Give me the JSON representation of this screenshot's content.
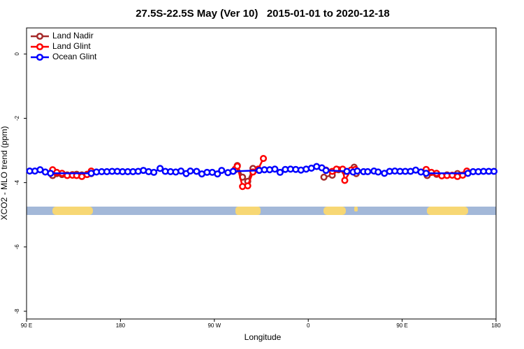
{
  "chart_data": {
    "type": "line",
    "title": "27.5S-22.5S May (Ver 10)   2015-01-01 to 2020-12-18",
    "xlabel": "Longitude",
    "ylabel": "XCO2 - MLO trend (ppm)",
    "xlim": [
      90,
      540
    ],
    "ylim": [
      -8.24,
      0.81
    ],
    "xticks": [
      {
        "value": 90,
        "label": "90 E"
      },
      180,
      {
        "value": 270,
        "label": "90 W"
      },
      {
        "value": 360,
        "label": "0"
      },
      {
        "value": 450,
        "label": "90 E"
      },
      {
        "value": 540,
        "label": "180"
      }
    ],
    "yticks": [
      0,
      -2,
      -4,
      -6,
      -8
    ],
    "legend": "top-left",
    "grid": false,
    "series": [
      {
        "name": "Land Nadir",
        "color": "#a52a2a",
        "x": [
          115,
          119,
          124,
          129,
          134,
          138,
          143,
          148,
          152,
          200,
          290,
          292,
          297,
          302,
          307,
          312,
          345,
          375,
          383,
          389,
          395,
          404,
          406,
          450,
          474,
          483,
          493,
          503,
          512
        ],
        "values": [
          -3.78,
          -3.72,
          -3.75,
          -3.76,
          -3.75,
          -3.74,
          -3.76,
          -3.74,
          -3.72,
          null,
          -3.6,
          -3.47,
          -3.83,
          -3.96,
          -3.56,
          -3.6,
          null,
          -3.83,
          -3.77,
          -3.6,
          -3.65,
          -3.52,
          -3.72,
          null,
          -3.78,
          -3.74,
          -3.76,
          -3.72,
          -3.65
        ]
      },
      {
        "name": "Land Glint",
        "color": "#ff0000",
        "x": [
          115,
          119,
          124,
          129,
          134,
          138,
          143,
          148,
          152,
          200,
          290,
          292,
          297,
          302,
          307,
          312,
          317,
          345,
          377,
          383,
          387,
          393,
          395,
          401,
          405,
          450,
          473,
          478,
          483,
          488,
          493,
          498,
          503,
          508,
          512
        ],
        "values": [
          -3.6,
          -3.68,
          -3.71,
          -3.78,
          -3.77,
          -3.78,
          -3.81,
          -3.75,
          -3.64,
          null,
          -3.58,
          -3.49,
          -4.12,
          -4.1,
          -3.67,
          -3.58,
          -3.25,
          null,
          -3.61,
          -3.65,
          -3.58,
          -3.58,
          -3.93,
          -3.61,
          -3.59,
          null,
          -3.59,
          -3.68,
          -3.71,
          -3.79,
          -3.78,
          -3.77,
          -3.81,
          -3.77,
          -3.64
        ]
      },
      {
        "name": "Ocean Glint",
        "color": "#0000ff",
        "x": [
          93,
          98,
          103,
          108,
          113,
          152,
          157,
          162,
          167,
          172,
          177,
          182,
          187,
          192,
          197,
          202,
          207,
          212,
          218,
          223,
          228,
          233,
          238,
          243,
          247,
          253,
          258,
          263,
          268,
          273,
          277,
          283,
          288,
          313,
          318,
          323,
          328,
          333,
          338,
          343,
          348,
          353,
          358,
          363,
          368,
          373,
          377,
          397,
          403,
          407,
          413,
          417,
          423,
          427,
          433,
          438,
          443,
          448,
          453,
          458,
          463,
          468,
          473,
          513,
          518,
          523,
          528,
          533,
          538
        ],
        "values": [
          -3.64,
          -3.64,
          -3.6,
          -3.67,
          -3.71,
          -3.71,
          -3.67,
          -3.66,
          -3.66,
          -3.65,
          -3.65,
          -3.66,
          -3.66,
          -3.66,
          -3.65,
          -3.62,
          -3.66,
          -3.68,
          -3.56,
          -3.65,
          -3.66,
          -3.67,
          -3.64,
          -3.72,
          -3.64,
          -3.65,
          -3.73,
          -3.68,
          -3.68,
          -3.73,
          -3.62,
          -3.69,
          -3.65,
          -3.62,
          -3.6,
          -3.6,
          -3.58,
          -3.68,
          -3.59,
          -3.58,
          -3.59,
          -3.61,
          -3.58,
          -3.55,
          -3.5,
          -3.54,
          -3.62,
          -3.65,
          -3.67,
          -3.64,
          -3.66,
          -3.66,
          -3.64,
          -3.67,
          -3.71,
          -3.65,
          -3.64,
          -3.65,
          -3.65,
          -3.65,
          -3.61,
          -3.67,
          -3.71,
          -3.71,
          -3.66,
          -3.66,
          -3.65,
          -3.65,
          -3.65
        ]
      }
    ]
  }
}
